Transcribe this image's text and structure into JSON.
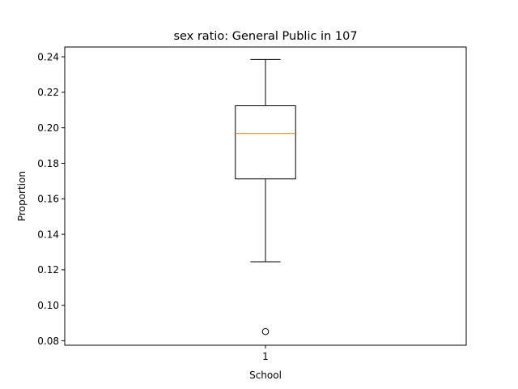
{
  "chart_data": {
    "type": "box",
    "title": "sex ratio: General Public in 107",
    "xlabel": "School",
    "ylabel": "Proportion",
    "categories": [
      "1"
    ],
    "ylim": [
      0.0775,
      0.2455
    ],
    "yticks": [
      0.08,
      0.1,
      0.12,
      0.14,
      0.16,
      0.18,
      0.2,
      0.22,
      0.24
    ],
    "ytick_labels": [
      "0.08",
      "0.10",
      "0.12",
      "0.14",
      "0.16",
      "0.18",
      "0.20",
      "0.22",
      "0.24"
    ],
    "boxes": [
      {
        "category": "1",
        "whisker_low": 0.1245,
        "q1": 0.1712,
        "median": 0.1968,
        "q3": 0.2124,
        "whisker_high": 0.2385,
        "outliers": [
          0.0852
        ]
      }
    ],
    "colors": {
      "box": "#000000",
      "median": "#ff7f0e",
      "outlier": "#000000"
    },
    "grid": false,
    "legend": "none"
  }
}
